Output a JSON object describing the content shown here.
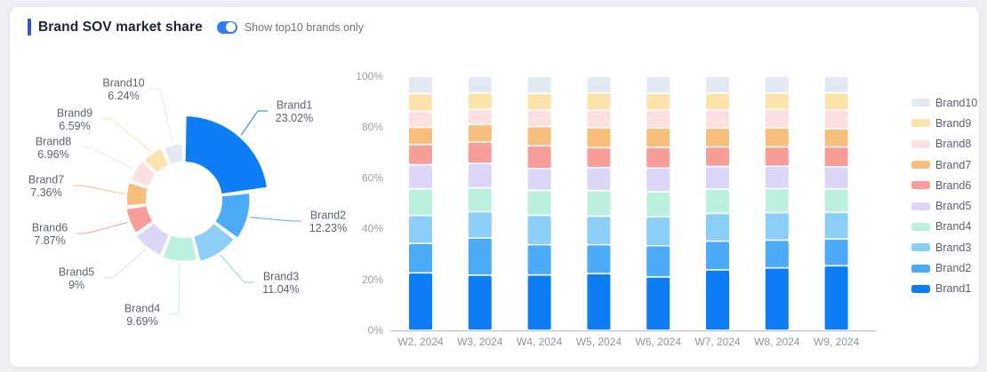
{
  "header": {
    "title": "Brand SOV market share",
    "toggle_label": "Show top10 brands only",
    "toggle_on": true
  },
  "colors": {
    "accent": "#2b58d8",
    "toggle_on": "#2f7df6",
    "axis_line": "#c9cdd4",
    "axis_text": "#989fa9",
    "donut_label_text": "#5c6470",
    "legend_text": "#5a6170",
    "Brand1": "#0d7df6",
    "Brand2": "#4babf8",
    "Brand3": "#8bcef8",
    "Brand4": "#bcf0de",
    "Brand5": "#dcd7f9",
    "Brand6": "#f89e99",
    "Brand7": "#f7bf7b",
    "Brand8": "#fcdfe0",
    "Brand9": "#fbe3ab",
    "Brand10": "#e3e9f2"
  },
  "chart_data": [
    {
      "type": "pie",
      "subtype": "rose-donut",
      "categories": [
        "Brand1",
        "Brand2",
        "Brand3",
        "Brand4",
        "Brand5",
        "Brand6",
        "Brand7",
        "Brand8",
        "Brand9",
        "Brand10"
      ],
      "values": [
        23.02,
        12.23,
        11.04,
        9.69,
        9,
        7.87,
        7.36,
        6.96,
        6.59,
        6.24
      ],
      "value_labels": [
        "23.02%",
        "12.23%",
        "11.04%",
        "9.69%",
        "9%",
        "7.87%",
        "7.36%",
        "6.96%",
        "6.59%",
        "6.24%"
      ],
      "unit": "%",
      "start_angle": "12-o-clock",
      "direction": "clockwise"
    },
    {
      "type": "bar",
      "stacked": true,
      "categories": [
        "W2, 2024",
        "W3, 2024",
        "W4, 2024",
        "W5, 2024",
        "W6, 2024",
        "W7, 2024",
        "W8, 2024",
        "W9, 2024"
      ],
      "series": [
        {
          "name": "Brand1",
          "values": [
            22.6,
            21.7,
            21.8,
            22.3,
            21.0,
            23.8,
            24.6,
            25.4
          ]
        },
        {
          "name": "Brand2",
          "values": [
            11.6,
            14.6,
            11.9,
            11.4,
            12.3,
            11.3,
            10.9,
            10.6
          ]
        },
        {
          "name": "Brand3",
          "values": [
            11.0,
            10.4,
            11.6,
            11.2,
            11.4,
            10.9,
            10.8,
            10.4
          ]
        },
        {
          "name": "Brand4",
          "values": [
            10.5,
            9.4,
            9.8,
            10.1,
            9.8,
            9.6,
            9.5,
            9.3
          ]
        },
        {
          "name": "Brand5",
          "values": [
            9.5,
            9.6,
            8.6,
            9.1,
            9.4,
            8.9,
            8.8,
            8.7
          ]
        },
        {
          "name": "Brand6",
          "values": [
            8.0,
            8.4,
            9.0,
            7.8,
            8.2,
            7.7,
            7.6,
            7.8
          ]
        },
        {
          "name": "Brand7",
          "values": [
            6.7,
            6.9,
            7.5,
            7.9,
            7.6,
            7.4,
            7.5,
            7.2
          ]
        },
        {
          "name": "Brand8",
          "values": [
            6.3,
            6.0,
            6.5,
            6.8,
            7.0,
            7.2,
            7.3,
            7.4
          ]
        },
        {
          "name": "Brand9",
          "values": [
            7.0,
            6.5,
            6.6,
            6.9,
            6.6,
            6.6,
            6.4,
            6.7
          ]
        },
        {
          "name": "Brand10",
          "values": [
            6.8,
            6.5,
            6.7,
            6.5,
            6.7,
            6.6,
            6.6,
            6.5
          ]
        }
      ],
      "ylim": [
        0,
        100
      ],
      "y_ticks": [
        "0%",
        "20%",
        "40%",
        "60%",
        "80%",
        "100%"
      ],
      "grid": false,
      "legend_position": "right",
      "legend_order": [
        "Brand10",
        "Brand9",
        "Brand8",
        "Brand7",
        "Brand6",
        "Brand5",
        "Brand4",
        "Brand3",
        "Brand2",
        "Brand1"
      ]
    }
  ]
}
